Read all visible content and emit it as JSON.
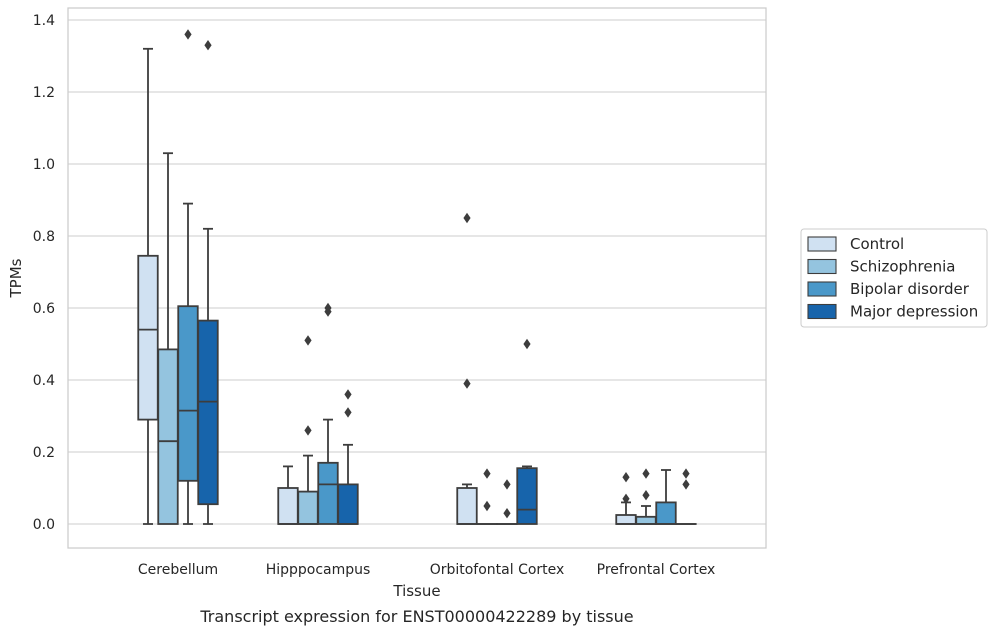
{
  "caption": "Transcript expression for ENST00000422289 by tissue",
  "chart_data": {
    "type": "box",
    "xlabel": "Tissue",
    "ylabel": "TPMs",
    "ylim": [
      -0.065,
      1.43
    ],
    "yticks": [
      0.0,
      0.2,
      0.4,
      0.6,
      0.8,
      1.0,
      1.2,
      1.4
    ],
    "ytick_labels": [
      "0.0",
      "0.2",
      "0.4",
      "0.6",
      "0.8",
      "1.0",
      "1.2",
      "1.4"
    ],
    "grid": "horizontal",
    "legend_position": "right",
    "categories": [
      "Cerebellum",
      "Hipppocampus",
      "Orbitofontal Cortex",
      "Prefrontal Cortex"
    ],
    "series": [
      {
        "name": "Control",
        "color": "#d0e1f2",
        "boxes": [
          {
            "min": 0.0,
            "q1": 0.29,
            "median": 0.54,
            "q3": 0.745,
            "max": 1.32,
            "outliers": []
          },
          {
            "min": 0.0,
            "q1": 0.0,
            "median": 0.0,
            "q3": 0.1,
            "max": 0.16,
            "outliers": []
          },
          {
            "min": 0.0,
            "q1": 0.0,
            "median": 0.0,
            "q3": 0.1,
            "max": 0.11,
            "outliers": [
              0.39,
              0.85
            ]
          },
          {
            "min": 0.0,
            "q1": 0.0,
            "median": 0.0,
            "q3": 0.025,
            "max": 0.06,
            "outliers": [
              0.07,
              0.13
            ]
          }
        ]
      },
      {
        "name": "Schizophrenia",
        "color": "#94c4df",
        "boxes": [
          {
            "min": 0.0,
            "q1": 0.0,
            "median": 0.23,
            "q3": 0.485,
            "max": 1.03,
            "outliers": []
          },
          {
            "min": 0.0,
            "q1": 0.0,
            "median": 0.0,
            "q3": 0.09,
            "max": 0.19,
            "outliers": [
              0.26,
              0.51
            ]
          },
          {
            "min": 0.0,
            "q1": 0.0,
            "median": 0.0,
            "q3": 0.0,
            "max": 0.0,
            "outliers": [
              0.05,
              0.14
            ]
          },
          {
            "min": 0.0,
            "q1": 0.0,
            "median": 0.0,
            "q3": 0.02,
            "max": 0.05,
            "outliers": [
              0.08,
              0.14
            ]
          }
        ]
      },
      {
        "name": "Bipolar disorder",
        "color": "#4a98c9",
        "boxes": [
          {
            "min": 0.0,
            "q1": 0.12,
            "median": 0.315,
            "q3": 0.605,
            "max": 0.89,
            "outliers": [
              1.36
            ]
          },
          {
            "min": 0.0,
            "q1": 0.0,
            "median": 0.11,
            "q3": 0.17,
            "max": 0.29,
            "outliers": [
              0.59,
              0.6
            ]
          },
          {
            "min": 0.0,
            "q1": 0.0,
            "median": 0.0,
            "q3": 0.0,
            "max": 0.0,
            "outliers": [
              0.03,
              0.11
            ]
          },
          {
            "min": 0.0,
            "q1": 0.0,
            "median": 0.0,
            "q3": 0.06,
            "max": 0.15,
            "outliers": []
          }
        ]
      },
      {
        "name": "Major depression",
        "color": "#1764ab",
        "boxes": [
          {
            "min": 0.0,
            "q1": 0.055,
            "median": 0.34,
            "q3": 0.565,
            "max": 0.82,
            "outliers": [
              1.33
            ]
          },
          {
            "min": 0.0,
            "q1": 0.0,
            "median": 0.0,
            "q3": 0.11,
            "max": 0.22,
            "outliers": [
              0.31,
              0.36
            ]
          },
          {
            "min": 0.0,
            "q1": 0.0,
            "median": 0.04,
            "q3": 0.155,
            "max": 0.16,
            "outliers": [
              0.5
            ]
          },
          {
            "min": 0.0,
            "q1": 0.0,
            "median": 0.0,
            "q3": 0.0,
            "max": 0.0,
            "outliers": [
              0.11,
              0.14
            ]
          }
        ]
      }
    ]
  }
}
